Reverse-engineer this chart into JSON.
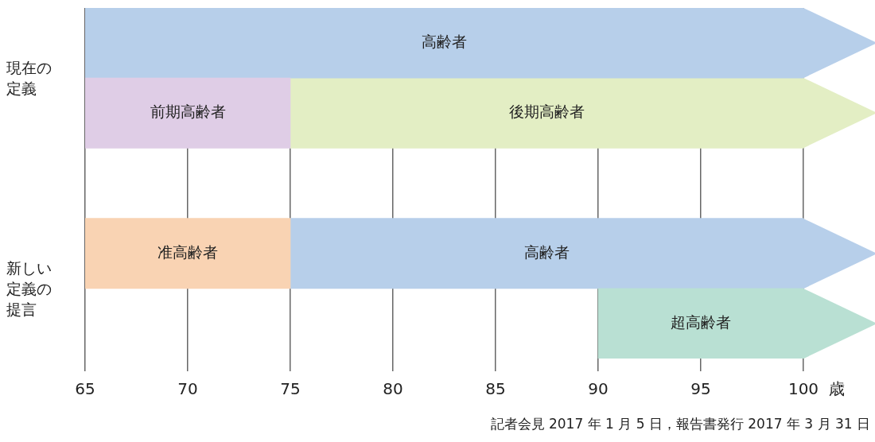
{
  "chart_data": {
    "type": "bar",
    "orientation": "horizontal",
    "xlabel": "歳",
    "categories": [
      null,
      null,
      null,
      null,
      null
    ],
    "series": [
      {
        "colors": [
          "#b7cfea",
          "#dfcde6",
          "#b7cfea",
          "#f9d3b3",
          "#b9e0d3"
        ],
        "base": [
          65,
          65,
          null,
          65,
          90
        ],
        "values": [
          35,
          10,
          null,
          10,
          10
        ],
        "value_labels": [
          "高齢者",
          "前期高齢者",
          null,
          "准高齢者",
          "超高齢者"
        ]
      },
      {
        "colors": [
          "#e3eec4",
          "#e3eec4",
          "#e3eec4",
          "#b7cfea",
          "#b7cfea"
        ],
        "base": [
          null,
          75,
          null,
          75,
          null
        ],
        "values": [
          null,
          25,
          null,
          25,
          null
        ],
        "value_labels": [
          null,
          "後期高齢者",
          null,
          "高齢者",
          null
        ]
      }
    ],
    "xlim": [
      65,
      100
    ],
    "xticks": [
      65,
      70,
      75,
      80,
      85,
      90,
      95,
      100
    ],
    "grid": "x",
    "tick_labels": "x",
    "legend": false,
    "annotations": [
      "現在の定義",
      "新しい定義の提言",
      "記者会見 2017 年 1 月 5 日，報告書発行 2017 年 3 月 31 日"
    ]
  }
}
